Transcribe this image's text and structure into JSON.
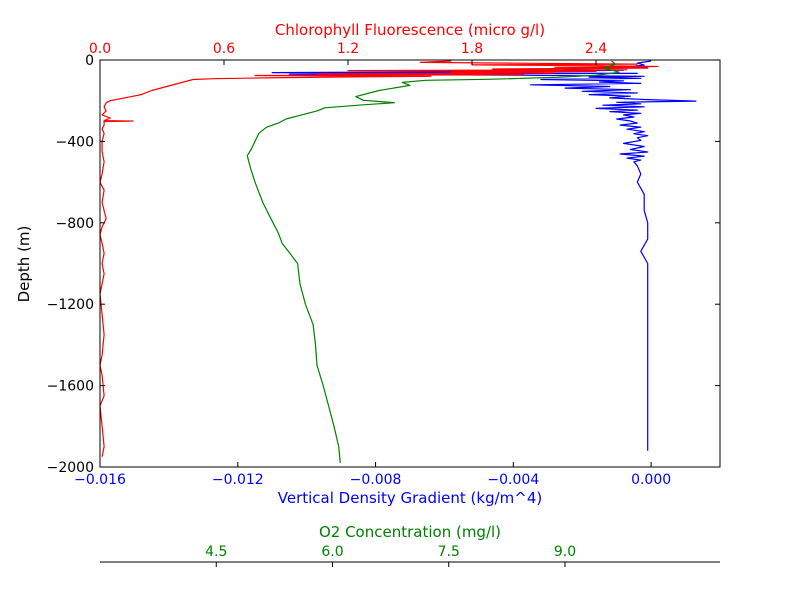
{
  "chart_data": {
    "type": "line",
    "title": "",
    "ylabel": "Depth (m)",
    "ylim": [
      -2000,
      0
    ],
    "yticks": [
      "0",
      "−400",
      "−800",
      "−1200",
      "−1600",
      "−2000"
    ],
    "grid": false,
    "axes": {
      "bottom": {
        "label": "Vertical Density Gradient (kg/m^4)",
        "color": "#0000ff",
        "lim": [
          -0.016,
          0.002
        ],
        "ticks": [
          -0.016,
          -0.012,
          -0.008,
          -0.004,
          0.0
        ],
        "tick_labels": [
          "−0.016",
          "−0.012",
          "−0.008",
          "−0.004",
          "0.000"
        ]
      },
      "top": {
        "label": "Chlorophyll Fluorescence (micro g/l)",
        "color": "#ff0000",
        "lim": [
          0.0,
          3.0
        ],
        "ticks": [
          0.0,
          0.6,
          1.2,
          1.8,
          2.4
        ],
        "tick_labels": [
          "0.0",
          "0.6",
          "1.2",
          "1.8",
          "2.4"
        ]
      },
      "offset_bottom": {
        "label": "O2 Concentration (mg/l)",
        "color": "#008000",
        "lim": [
          3.0,
          11.0
        ],
        "ticks": [
          4.5,
          6.0,
          7.5,
          9.0
        ],
        "tick_labels": [
          "4.5",
          "6.0",
          "7.5",
          "9.0"
        ]
      }
    },
    "series": [
      {
        "axis": "bottom",
        "color": "#0000ff",
        "points": [
          [
            0.0,
            5
          ],
          [
            -0.0004,
            15
          ],
          [
            -0.0002,
            25
          ],
          [
            -0.0006,
            32
          ],
          [
            -0.0001,
            38
          ],
          [
            -0.0025,
            44
          ],
          [
            -0.0008,
            50
          ],
          [
            -0.003,
            56
          ],
          [
            -0.011,
            62
          ],
          [
            -0.0004,
            66
          ],
          [
            -0.0105,
            70
          ],
          [
            -0.0035,
            75
          ],
          [
            -0.0002,
            80
          ],
          [
            -0.0018,
            84
          ],
          [
            -0.0003,
            90
          ],
          [
            -0.0032,
            96
          ],
          [
            -0.0008,
            102
          ],
          [
            -0.0015,
            108
          ],
          [
            -0.0003,
            115
          ],
          [
            -0.0035,
            122
          ],
          [
            -0.0012,
            130
          ],
          [
            -0.0025,
            138
          ],
          [
            -0.0006,
            146
          ],
          [
            -0.002,
            154
          ],
          [
            -0.0004,
            162
          ],
          [
            -0.0018,
            170
          ],
          [
            -0.0006,
            178
          ],
          [
            -0.0012,
            186
          ],
          [
            -0.0002,
            194
          ],
          [
            0.0013,
            202
          ],
          [
            -0.001,
            208
          ],
          [
            -0.0003,
            215
          ],
          [
            -0.0014,
            222
          ],
          [
            -0.0002,
            230
          ],
          [
            -0.0016,
            238
          ],
          [
            -0.0004,
            246
          ],
          [
            -0.0012,
            254
          ],
          [
            -0.0003,
            262
          ],
          [
            -0.0008,
            270
          ],
          [
            -0.0005,
            280
          ],
          [
            -0.001,
            290
          ],
          [
            -0.0006,
            300
          ],
          [
            -0.0004,
            310
          ],
          [
            -0.0009,
            320
          ],
          [
            -0.0003,
            330
          ],
          [
            -0.0007,
            340
          ],
          [
            -0.0002,
            352
          ],
          [
            -0.0005,
            362
          ],
          [
            -0.0001,
            372
          ],
          [
            -0.0004,
            382
          ],
          [
            -0.0003,
            395
          ],
          [
            -0.0008,
            410
          ],
          [
            -0.0002,
            425
          ],
          [
            -0.0006,
            440
          ],
          [
            -0.0001,
            452
          ],
          [
            -0.0009,
            462
          ],
          [
            -0.0002,
            472
          ],
          [
            -0.0007,
            482
          ],
          [
            -0.0003,
            492
          ],
          [
            -0.0005,
            500
          ],
          [
            -0.0004,
            520
          ],
          [
            -0.0003,
            560
          ],
          [
            -0.0004,
            600
          ],
          [
            -0.0002,
            660
          ],
          [
            -0.0002,
            740
          ],
          [
            -0.0001,
            800
          ],
          [
            -0.0001,
            880
          ],
          [
            -0.0003,
            940
          ],
          [
            -0.0001,
            1000
          ],
          [
            -0.0001,
            1060
          ],
          [
            -0.0001,
            1150
          ],
          [
            -0.0001,
            1250
          ],
          [
            -0.0001,
            1350
          ],
          [
            -0.0001,
            1450
          ],
          [
            -0.0001,
            1550
          ],
          [
            -0.0001,
            1650
          ],
          [
            -0.0001,
            1750
          ],
          [
            -0.0001,
            1850
          ],
          [
            -0.0001,
            1920
          ]
        ]
      },
      {
        "axis": "top",
        "color": "#ff0000",
        "points": [
          [
            1.7,
            5
          ],
          [
            1.55,
            12
          ],
          [
            2.1,
            16
          ],
          [
            2.6,
            20
          ],
          [
            1.8,
            24
          ],
          [
            2.4,
            28
          ],
          [
            2.7,
            32
          ],
          [
            2.2,
            36
          ],
          [
            2.65,
            40
          ],
          [
            1.9,
            44
          ],
          [
            2.55,
            48
          ],
          [
            1.2,
            52
          ],
          [
            2.4,
            56
          ],
          [
            1.7,
            60
          ],
          [
            2.2,
            64
          ],
          [
            1.05,
            68
          ],
          [
            2.05,
            72
          ],
          [
            0.75,
            76
          ],
          [
            1.6,
            80
          ],
          [
            1.1,
            84
          ],
          [
            0.8,
            88
          ],
          [
            0.55,
            92
          ],
          [
            0.45,
            96
          ],
          [
            0.25,
            150
          ],
          [
            0.2,
            170
          ],
          [
            0.1,
            190
          ],
          [
            0.05,
            200
          ],
          [
            0.03,
            210
          ],
          [
            0.02,
            230
          ],
          [
            0.03,
            250
          ],
          [
            0.01,
            270
          ],
          [
            0.05,
            285
          ],
          [
            0.02,
            298
          ],
          [
            0.16,
            300
          ],
          [
            0.02,
            302
          ],
          [
            0.02,
            320
          ],
          [
            0.01,
            340
          ],
          [
            0.02,
            360
          ],
          [
            0.01,
            400
          ],
          [
            0.01,
            450
          ],
          [
            0.02,
            500
          ],
          [
            0.01,
            560
          ],
          [
            0.0,
            600
          ],
          [
            0.02,
            640
          ],
          [
            0.01,
            700
          ],
          [
            0.02,
            740
          ],
          [
            0.03,
            780
          ],
          [
            0.01,
            820
          ],
          [
            0.0,
            860
          ],
          [
            0.01,
            900
          ],
          [
            0.02,
            950
          ],
          [
            0.01,
            1000
          ],
          [
            0.02,
            1050
          ],
          [
            0.01,
            1100
          ],
          [
            0.0,
            1150
          ],
          [
            0.01,
            1250
          ],
          [
            0.02,
            1350
          ],
          [
            0.01,
            1450
          ],
          [
            0.0,
            1500
          ],
          [
            0.01,
            1550
          ],
          [
            0.02,
            1650
          ],
          [
            0.0,
            1700
          ],
          [
            0.01,
            1800
          ],
          [
            0.02,
            1900
          ],
          [
            0.01,
            1950
          ]
        ]
      },
      {
        "axis": "offset_bottom",
        "color": "#008000",
        "points": [
          [
            9.6,
            5
          ],
          [
            9.65,
            20
          ],
          [
            9.5,
            40
          ],
          [
            9.7,
            60
          ],
          [
            9.4,
            75
          ],
          [
            8.9,
            85
          ],
          [
            8.0,
            95
          ],
          [
            7.2,
            100
          ],
          [
            6.9,
            110
          ],
          [
            7.0,
            125
          ],
          [
            6.6,
            150
          ],
          [
            6.3,
            180
          ],
          [
            6.4,
            198
          ],
          [
            6.8,
            210
          ],
          [
            6.4,
            220
          ],
          [
            5.9,
            235
          ],
          [
            5.8,
            250
          ],
          [
            5.6,
            270
          ],
          [
            5.4,
            290
          ],
          [
            5.3,
            310
          ],
          [
            5.15,
            330
          ],
          [
            5.05,
            360
          ],
          [
            5.0,
            400
          ],
          [
            4.95,
            440
          ],
          [
            4.9,
            470
          ],
          [
            4.92,
            500
          ],
          [
            4.95,
            540
          ],
          [
            5.0,
            600
          ],
          [
            5.05,
            650
          ],
          [
            5.1,
            700
          ],
          [
            5.18,
            760
          ],
          [
            5.3,
            850
          ],
          [
            5.35,
            900
          ],
          [
            5.45,
            950
          ],
          [
            5.55,
            1000
          ],
          [
            5.58,
            1100
          ],
          [
            5.65,
            1200
          ],
          [
            5.75,
            1300
          ],
          [
            5.78,
            1400
          ],
          [
            5.8,
            1500
          ],
          [
            5.88,
            1600
          ],
          [
            5.95,
            1700
          ],
          [
            6.02,
            1800
          ],
          [
            6.08,
            1900
          ],
          [
            6.1,
            1980
          ]
        ]
      }
    ]
  }
}
